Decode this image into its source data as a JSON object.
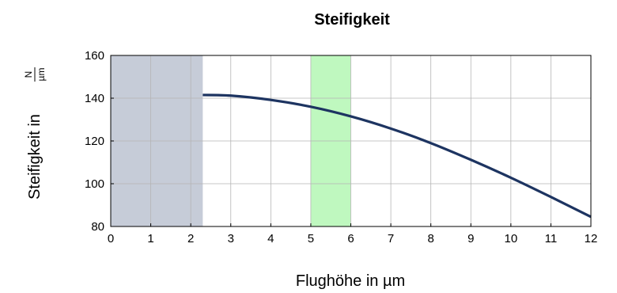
{
  "chart_data": {
    "type": "line",
    "title": "Steifigkeit",
    "xlabel": "Flughöhe in µm",
    "ylabel_prefix": "Steifigkeit in",
    "ylabel_unit_numerator": "N",
    "ylabel_unit_denominator": "µm",
    "xlim": [
      0,
      12
    ],
    "ylim": [
      80,
      160
    ],
    "x_ticks": [
      "0",
      "1",
      "2",
      "3",
      "4",
      "5",
      "6",
      "7",
      "8",
      "9",
      "10",
      "11",
      "12"
    ],
    "y_ticks": [
      "80",
      "100",
      "120",
      "140",
      "160"
    ],
    "grid": true,
    "legend": "none",
    "shaded_regions": [
      {
        "x_from": 0,
        "x_to": 2.3,
        "color": "#c6ccd8"
      },
      {
        "x_from": 5,
        "x_to": 6,
        "color": "#bff8bf"
      }
    ],
    "series": [
      {
        "color": "#1d3461",
        "x": [
          2.3,
          3,
          4,
          5,
          6,
          7,
          8,
          9,
          10,
          11,
          12
        ],
        "y": [
          141.5,
          141.2,
          139.2,
          136.0,
          131.5,
          125.8,
          119.0,
          111.2,
          102.8,
          93.8,
          84.5
        ]
      }
    ]
  }
}
